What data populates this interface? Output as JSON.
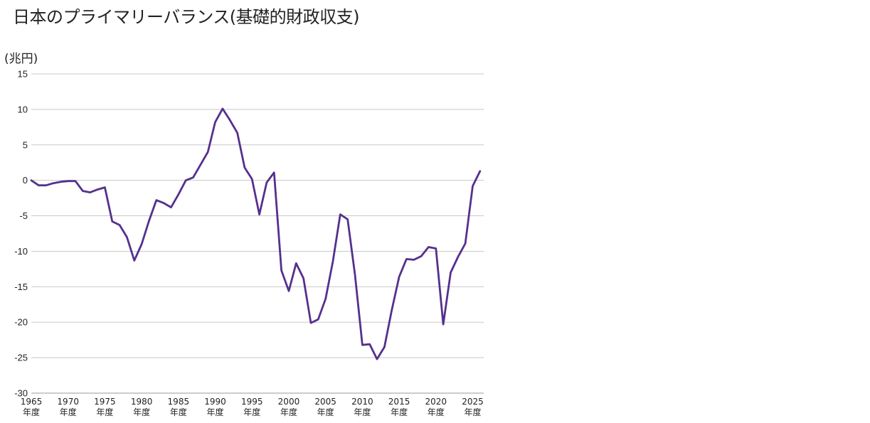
{
  "chart_data": {
    "type": "line",
    "title": "日本のプライマリーバランス(基礎的財政収支)",
    "ylabel": "(兆円)",
    "xlabel": "",
    "ylim": [
      -30,
      15
    ],
    "xlim": [
      1965,
      2026.5
    ],
    "yticks": [
      "15",
      "10",
      "5",
      "0",
      "-5",
      "-10",
      "-15",
      "-20",
      "-25",
      "-30"
    ],
    "xtick_suffix": "年度",
    "xticks": [
      "1965",
      "1970",
      "1975",
      "1980",
      "1985",
      "1990",
      "1995",
      "2000",
      "2005",
      "2010",
      "2015",
      "2020",
      "2025"
    ],
    "line_color": "#55308d",
    "series": [
      {
        "name": "プライマリーバランス",
        "x": [
          1965,
          1966,
          1967,
          1968,
          1969,
          1970,
          1971,
          1972,
          1973,
          1974,
          1975,
          1976,
          1977,
          1978,
          1979,
          1980,
          1981,
          1982,
          1983,
          1984,
          1985,
          1986,
          1987,
          1988,
          1989,
          1990,
          1991,
          1992,
          1993,
          1994,
          1995,
          1996,
          1997,
          1998,
          1999,
          2000,
          2001,
          2002,
          2003,
          2004,
          2005,
          2006,
          2007,
          2008,
          2009,
          2010,
          2011,
          2012,
          2013,
          2014,
          2015,
          2016,
          2017,
          2018,
          2019,
          2020,
          2021,
          2022,
          2023,
          2024,
          2025,
          2026
        ],
        "values": [
          0,
          -0.7,
          -0.7,
          -0.4,
          -0.2,
          -0.1,
          -0.1,
          -1.5,
          -1.7,
          -1.3,
          -1.0,
          -5.8,
          -6.3,
          -8.0,
          -11.3,
          -9.0,
          -5.7,
          -2.8,
          -3.2,
          -3.8,
          -2.0,
          0,
          0.4,
          2.2,
          4.0,
          8.2,
          10.1,
          8.5,
          6.7,
          1.8,
          0.2,
          -4.8,
          -0.3,
          1.1,
          -12.7,
          -15.6,
          -11.7,
          -13.8,
          -20.1,
          -19.6,
          -16.7,
          -11.4,
          -4.8,
          -5.5,
          -13.3,
          -23.2,
          -23.1,
          -25.2,
          -23.5,
          -18.3,
          -13.6,
          -11.1,
          -11.2,
          -10.7,
          -9.4,
          -9.6,
          -20.3,
          -13.0,
          -10.8,
          -8.9,
          -0.8,
          1.3
        ]
      }
    ],
    "grid": true
  }
}
